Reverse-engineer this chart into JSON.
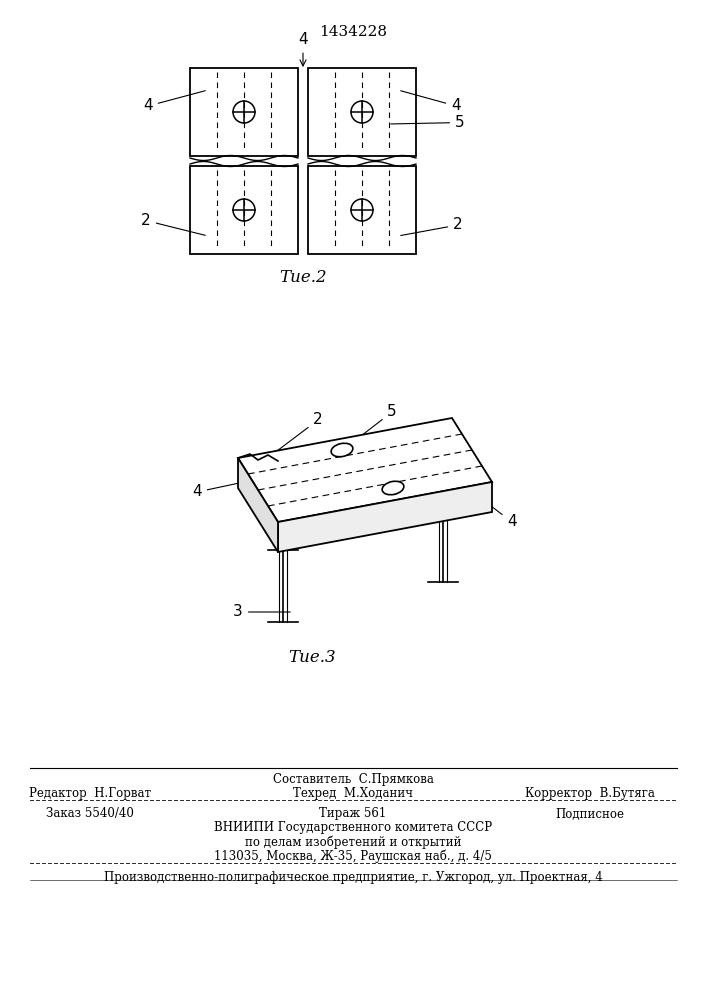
{
  "title_patent": "1434228",
  "fig2_label": "Τие.2",
  "fig3_label": "Τие.3",
  "bg_color": "#ffffff",
  "line_color": "#000000",
  "dashed_color": "#000000",
  "label_color": "#000000",
  "editor_line": "Редактор  Н.Горват",
  "composer_line": "Составитель  С.Прямкова",
  "techred_line": "Техред  М.Ходанич",
  "corrector_line": "Корректор  В.Бутяга",
  "order_line": "Заказ 5540/40",
  "tirazh_line": "Тираж 561",
  "podpisnoe_line": "Подписное",
  "vniip_line1": "ВНИИПИ Государственного комитета СССР",
  "vniip_line2": "по делам изобретений и открытий",
  "vniip_line3": "113035, Москва, Ж-35, Раушская наб., д. 4/5",
  "prod_line": "Производственно-полиграфическое предприятие, г. Ужгород, ул. Проектная, 4"
}
